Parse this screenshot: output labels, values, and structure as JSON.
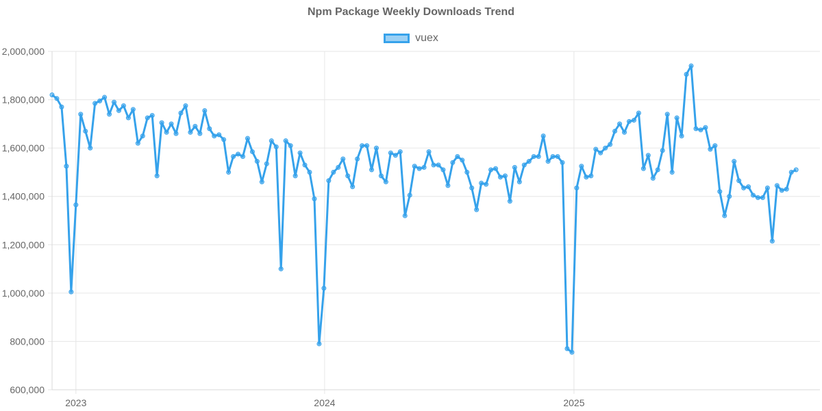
{
  "title": "Npm Package Weekly Downloads Trend",
  "legend": {
    "label": "vuex"
  },
  "colors": {
    "line": "#36a2eb",
    "grid": "#e6e6e6",
    "text": "#666666"
  },
  "chart_data": {
    "type": "line",
    "title": "Npm Package Weekly Downloads Trend",
    "xlabel": "",
    "ylabel": "",
    "ylim": [
      600000,
      2000000
    ],
    "xlim": [
      "2022-11-27",
      "2025-12-28"
    ],
    "grid": true,
    "legend_position": "top",
    "y_ticks": [
      "600,000",
      "800,000",
      "1,000,000",
      "1,200,000",
      "1,400,000",
      "1,600,000",
      "1,800,000",
      "2,000,000"
    ],
    "y_tick_values": [
      600000,
      800000,
      1000000,
      1200000,
      1400000,
      1600000,
      1800000,
      2000000
    ],
    "x_ticks": [
      {
        "label": "2023",
        "date": "2023-01-01"
      },
      {
        "label": "2024",
        "date": "2024-01-01"
      },
      {
        "label": "2025",
        "date": "2025-01-01"
      }
    ],
    "series": [
      {
        "name": "vuex",
        "x_start": "2022-11-27",
        "x_step": "1 week",
        "values": [
          1820000,
          1805000,
          1770000,
          1525000,
          1005000,
          1365000,
          1740000,
          1670000,
          1600000,
          1785000,
          1795000,
          1810000,
          1740000,
          1790000,
          1755000,
          1775000,
          1725000,
          1760000,
          1620000,
          1650000,
          1725000,
          1735000,
          1485000,
          1705000,
          1665000,
          1700000,
          1660000,
          1745000,
          1775000,
          1665000,
          1690000,
          1660000,
          1755000,
          1680000,
          1650000,
          1655000,
          1635000,
          1500000,
          1565000,
          1575000,
          1565000,
          1640000,
          1585000,
          1545000,
          1460000,
          1535000,
          1630000,
          1605000,
          1100000,
          1630000,
          1610000,
          1485000,
          1580000,
          1530000,
          1500000,
          1390000,
          790000,
          1020000,
          1465000,
          1500000,
          1520000,
          1555000,
          1485000,
          1440000,
          1555000,
          1610000,
          1610000,
          1510000,
          1600000,
          1485000,
          1460000,
          1580000,
          1570000,
          1585000,
          1320000,
          1405000,
          1525000,
          1515000,
          1520000,
          1585000,
          1530000,
          1530000,
          1510000,
          1445000,
          1540000,
          1565000,
          1550000,
          1500000,
          1435000,
          1345000,
          1455000,
          1450000,
          1510000,
          1515000,
          1480000,
          1485000,
          1380000,
          1520000,
          1460000,
          1530000,
          1545000,
          1565000,
          1565000,
          1650000,
          1545000,
          1565000,
          1565000,
          1540000,
          770000,
          755000,
          1435000,
          1525000,
          1480000,
          1485000,
          1595000,
          1580000,
          1600000,
          1615000,
          1670000,
          1700000,
          1665000,
          1710000,
          1715000,
          1745000,
          1515000,
          1570000,
          1475000,
          1510000,
          1590000,
          1740000,
          1500000,
          1725000,
          1650000,
          1905000,
          1940000,
          1680000,
          1675000,
          1685000,
          1595000,
          1610000,
          1420000,
          1320000,
          1400000,
          1545000,
          1465000,
          1435000,
          1440000,
          1405000,
          1395000,
          1395000,
          1435000,
          1215000,
          1445000,
          1425000,
          1430000,
          1500000,
          1510000
        ]
      }
    ]
  }
}
